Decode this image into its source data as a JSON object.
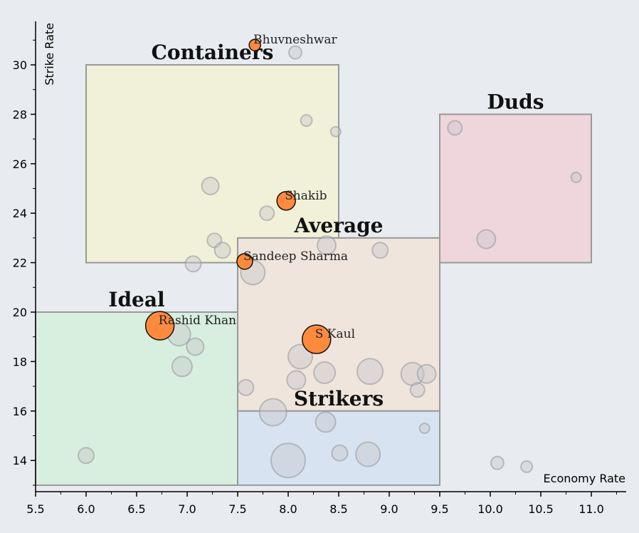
{
  "chart_data": {
    "type": "scatter",
    "title": "",
    "xlabel": "Economy Rate",
    "ylabel": "Strike Rate",
    "xlim": [
      5.5,
      11.35
    ],
    "ylim": [
      12.7,
      31.7
    ],
    "x_ticks": [
      "5.5",
      "6.0",
      "6.5",
      "7.0",
      "7.5",
      "8.0",
      "8.5",
      "9.0",
      "9.5",
      "10.0",
      "10.5",
      "11.0"
    ],
    "y_ticks": [
      "14",
      "16",
      "18",
      "20",
      "22",
      "24",
      "26",
      "28",
      "30"
    ],
    "zones": [
      {
        "name": "Containers",
        "x0": 6.0,
        "x1": 8.5,
        "y0": 22,
        "y1": 30,
        "color": "#f0f1d8"
      },
      {
        "name": "Duds",
        "x0": 9.5,
        "x1": 11.0,
        "y0": 22,
        "y1": 28,
        "color": "#efd5dc"
      },
      {
        "name": "Average",
        "x0": 7.5,
        "x1": 9.5,
        "y0": 16,
        "y1": 23,
        "color": "#efe5dc"
      },
      {
        "name": "Ideal",
        "x0": 5.5,
        "x1": 7.5,
        "y0": 13,
        "y1": 20,
        "color": "#d8efdf"
      },
      {
        "name": "Strikers",
        "x0": 7.5,
        "x1": 9.5,
        "y0": 13,
        "y1": 16,
        "color": "#d7e3f1"
      }
    ],
    "highlighted_players": [
      {
        "name": "Bhuvneshwar",
        "x": 7.67,
        "y": 30.8,
        "r": 8
      },
      {
        "name": "Shakib",
        "x": 7.98,
        "y": 24.5,
        "r": 13
      },
      {
        "name": "Sandeep Sharma",
        "x": 7.57,
        "y": 22.05,
        "r": 11
      },
      {
        "name": "Rashid Khan",
        "x": 6.73,
        "y": 19.45,
        "r": 20
      },
      {
        "name": "S Kaul",
        "x": 8.28,
        "y": 18.9,
        "r": 20
      }
    ],
    "background_players": [
      {
        "x": 8.07,
        "y": 30.5,
        "r": 9
      },
      {
        "x": 8.18,
        "y": 27.75,
        "r": 8
      },
      {
        "x": 8.47,
        "y": 27.3,
        "r": 7
      },
      {
        "x": 7.23,
        "y": 25.1,
        "r": 12
      },
      {
        "x": 7.79,
        "y": 24.0,
        "r": 10
      },
      {
        "x": 7.27,
        "y": 22.9,
        "r": 10
      },
      {
        "x": 7.35,
        "y": 22.5,
        "r": 11
      },
      {
        "x": 7.06,
        "y": 21.95,
        "r": 11
      },
      {
        "x": 7.65,
        "y": 21.6,
        "r": 17
      },
      {
        "x": 8.38,
        "y": 22.7,
        "r": 13
      },
      {
        "x": 8.91,
        "y": 22.5,
        "r": 11
      },
      {
        "x": 6.92,
        "y": 19.1,
        "r": 16
      },
      {
        "x": 7.08,
        "y": 18.6,
        "r": 12
      },
      {
        "x": 6.95,
        "y": 17.8,
        "r": 14
      },
      {
        "x": 8.12,
        "y": 18.2,
        "r": 17
      },
      {
        "x": 8.36,
        "y": 17.55,
        "r": 15
      },
      {
        "x": 8.08,
        "y": 17.25,
        "r": 13
      },
      {
        "x": 8.81,
        "y": 17.6,
        "r": 18
      },
      {
        "x": 9.23,
        "y": 17.5,
        "r": 16
      },
      {
        "x": 9.37,
        "y": 17.5,
        "r": 13
      },
      {
        "x": 7.58,
        "y": 16.95,
        "r": 11
      },
      {
        "x": 9.28,
        "y": 16.85,
        "r": 10
      },
      {
        "x": 7.85,
        "y": 15.95,
        "r": 19
      },
      {
        "x": 8.37,
        "y": 15.55,
        "r": 14
      },
      {
        "x": 9.35,
        "y": 15.3,
        "r": 7
      },
      {
        "x": 8.0,
        "y": 14.0,
        "r": 24
      },
      {
        "x": 8.51,
        "y": 14.3,
        "r": 11
      },
      {
        "x": 8.79,
        "y": 14.25,
        "r": 17
      },
      {
        "x": 6.0,
        "y": 14.2,
        "r": 11
      },
      {
        "x": 9.65,
        "y": 27.45,
        "r": 10
      },
      {
        "x": 10.85,
        "y": 25.45,
        "r": 7
      },
      {
        "x": 9.96,
        "y": 22.95,
        "r": 13
      },
      {
        "x": 10.07,
        "y": 13.9,
        "r": 9
      },
      {
        "x": 10.36,
        "y": 13.75,
        "r": 8
      }
    ]
  }
}
